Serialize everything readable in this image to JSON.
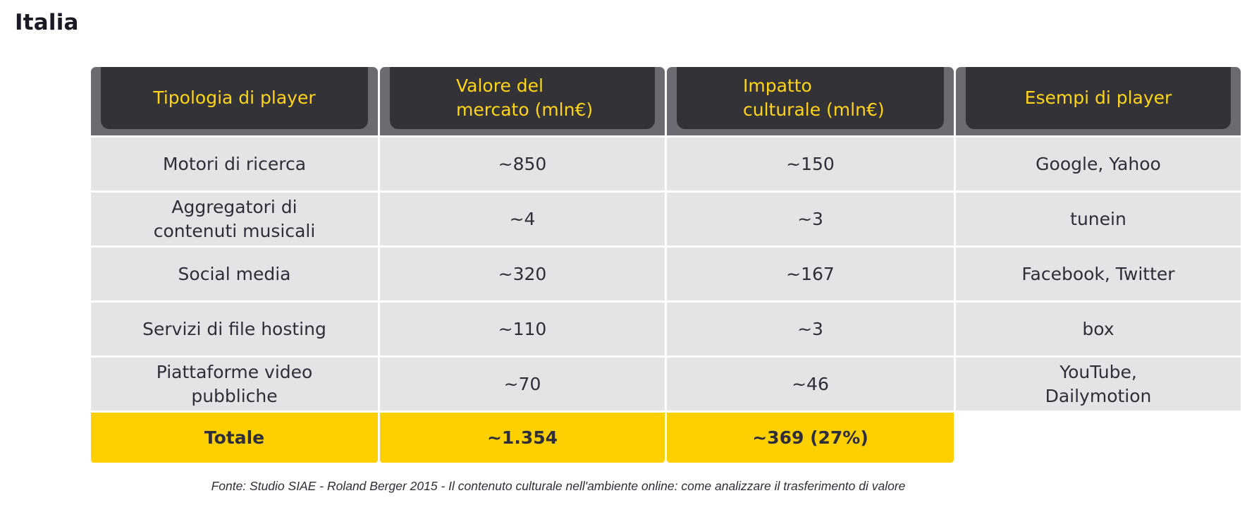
{
  "page": {
    "title": "Italia"
  },
  "table": {
    "headers": [
      {
        "lines": [
          "Tipologia di player"
        ]
      },
      {
        "lines": [
          "Valore del",
          "mercato (mln€)"
        ]
      },
      {
        "lines": [
          "Impatto",
          "culturale (mln€)"
        ]
      },
      {
        "lines": [
          "Esempi di player"
        ]
      }
    ],
    "rows": [
      {
        "tipologia": [
          "Motori di ricerca"
        ],
        "valore": "~850",
        "impatto": "~150",
        "esempi": [
          "Google, Yahoo"
        ]
      },
      {
        "tipologia": [
          "Aggregatori di",
          "contenuti musicali"
        ],
        "valore": "~4",
        "impatto": "~3",
        "esempi": [
          "tunein"
        ]
      },
      {
        "tipologia": [
          "Social media"
        ],
        "valore": "~320",
        "impatto": "~167",
        "esempi": [
          "Facebook, Twitter"
        ]
      },
      {
        "tipologia": [
          "Servizi di file hosting"
        ],
        "valore": "~110",
        "impatto": "~3",
        "esempi": [
          "box"
        ]
      },
      {
        "tipologia": [
          "Piattaforme video",
          "pubbliche"
        ],
        "valore": "~70",
        "impatto": "~46",
        "esempi": [
          "YouTube,",
          "Dailymotion"
        ]
      }
    ],
    "total": {
      "label": "Totale",
      "valore": "~1.354",
      "impatto": "~369 (27%)"
    }
  },
  "source": "Fonte: Studio SIAE - Roland Berger 2015 - Il contenuto culturale nell'ambiente online: come analizzare il trasferimento di valore",
  "colors": {
    "header_bg": "#333337",
    "header_frame": "#6b6b72",
    "header_text": "#ffd41c",
    "row_bg": "#e4e4e6",
    "total_bg": "#ffd000",
    "text": "#2e2e38"
  }
}
